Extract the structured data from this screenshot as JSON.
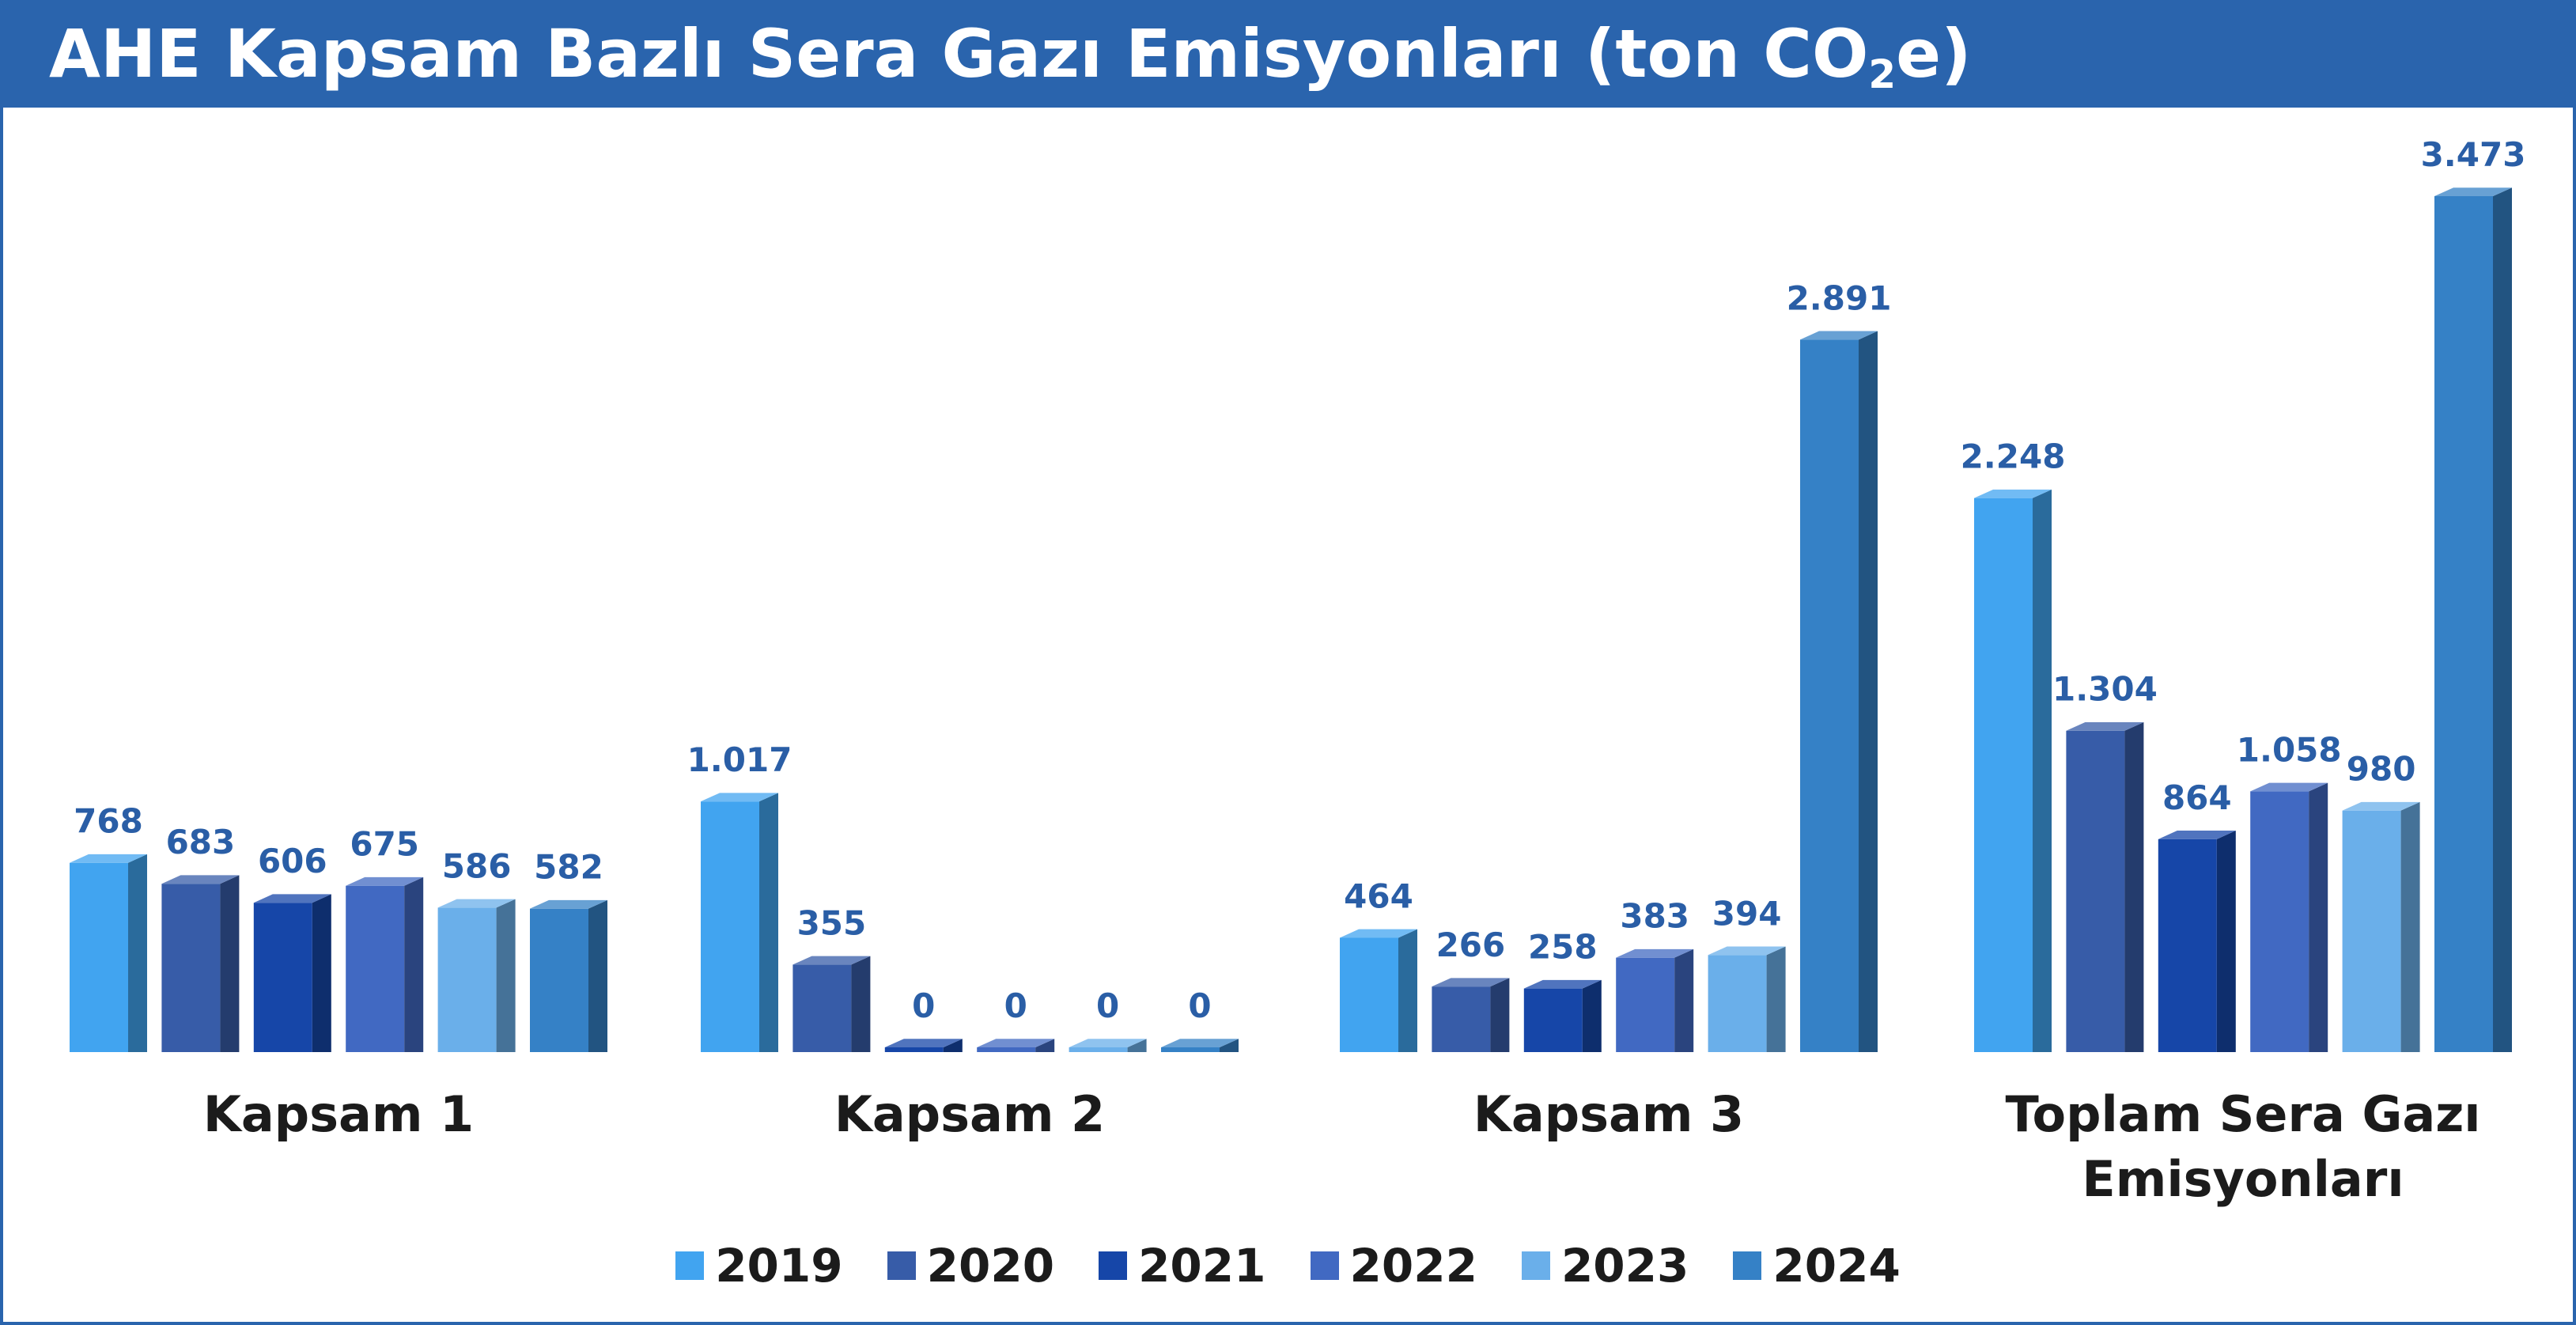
{
  "title": {
    "main": "AHE Kapsam Bazlı Sera Gazı Emisyonları (ton CO",
    "subscript": "2",
    "suffix": "e)"
  },
  "colors": {
    "title_bar": "#2a64ad",
    "value_label": "#2a5ea6",
    "series": [
      "#41a4f0",
      "#375ca8",
      "#1646a8",
      "#4169c2",
      "#6aafea",
      "#3581c6"
    ]
  },
  "chart_data": {
    "type": "bar",
    "categories": [
      "Kapsam 1",
      "Kapsam 2",
      "Kapsam 3",
      "Toplam Sera Gazı Emisyonları"
    ],
    "series": [
      {
        "name": "2019",
        "values": [
          768,
          1017,
          464,
          2248
        ],
        "labels": [
          "768",
          "1.017",
          "464",
          "2.248"
        ]
      },
      {
        "name": "2020",
        "values": [
          683,
          355,
          266,
          1304
        ],
        "labels": [
          "683",
          "355",
          "266",
          "1.304"
        ]
      },
      {
        "name": "2021",
        "values": [
          606,
          0,
          258,
          864
        ],
        "labels": [
          "606",
          "0",
          "258",
          "864"
        ]
      },
      {
        "name": "2022",
        "values": [
          675,
          0,
          383,
          1058
        ],
        "labels": [
          "675",
          "0",
          "383",
          "1.058"
        ]
      },
      {
        "name": "2023",
        "values": [
          586,
          0,
          394,
          980
        ],
        "labels": [
          "586",
          "0",
          "394",
          "980"
        ]
      },
      {
        "name": "2024",
        "values": [
          582,
          0,
          2891,
          3473
        ],
        "labels": [
          "582",
          "0",
          "2.891",
          "3.473"
        ]
      }
    ],
    "legend_position": "bottom",
    "grid": false,
    "ylim": [
      0,
      3473
    ]
  }
}
